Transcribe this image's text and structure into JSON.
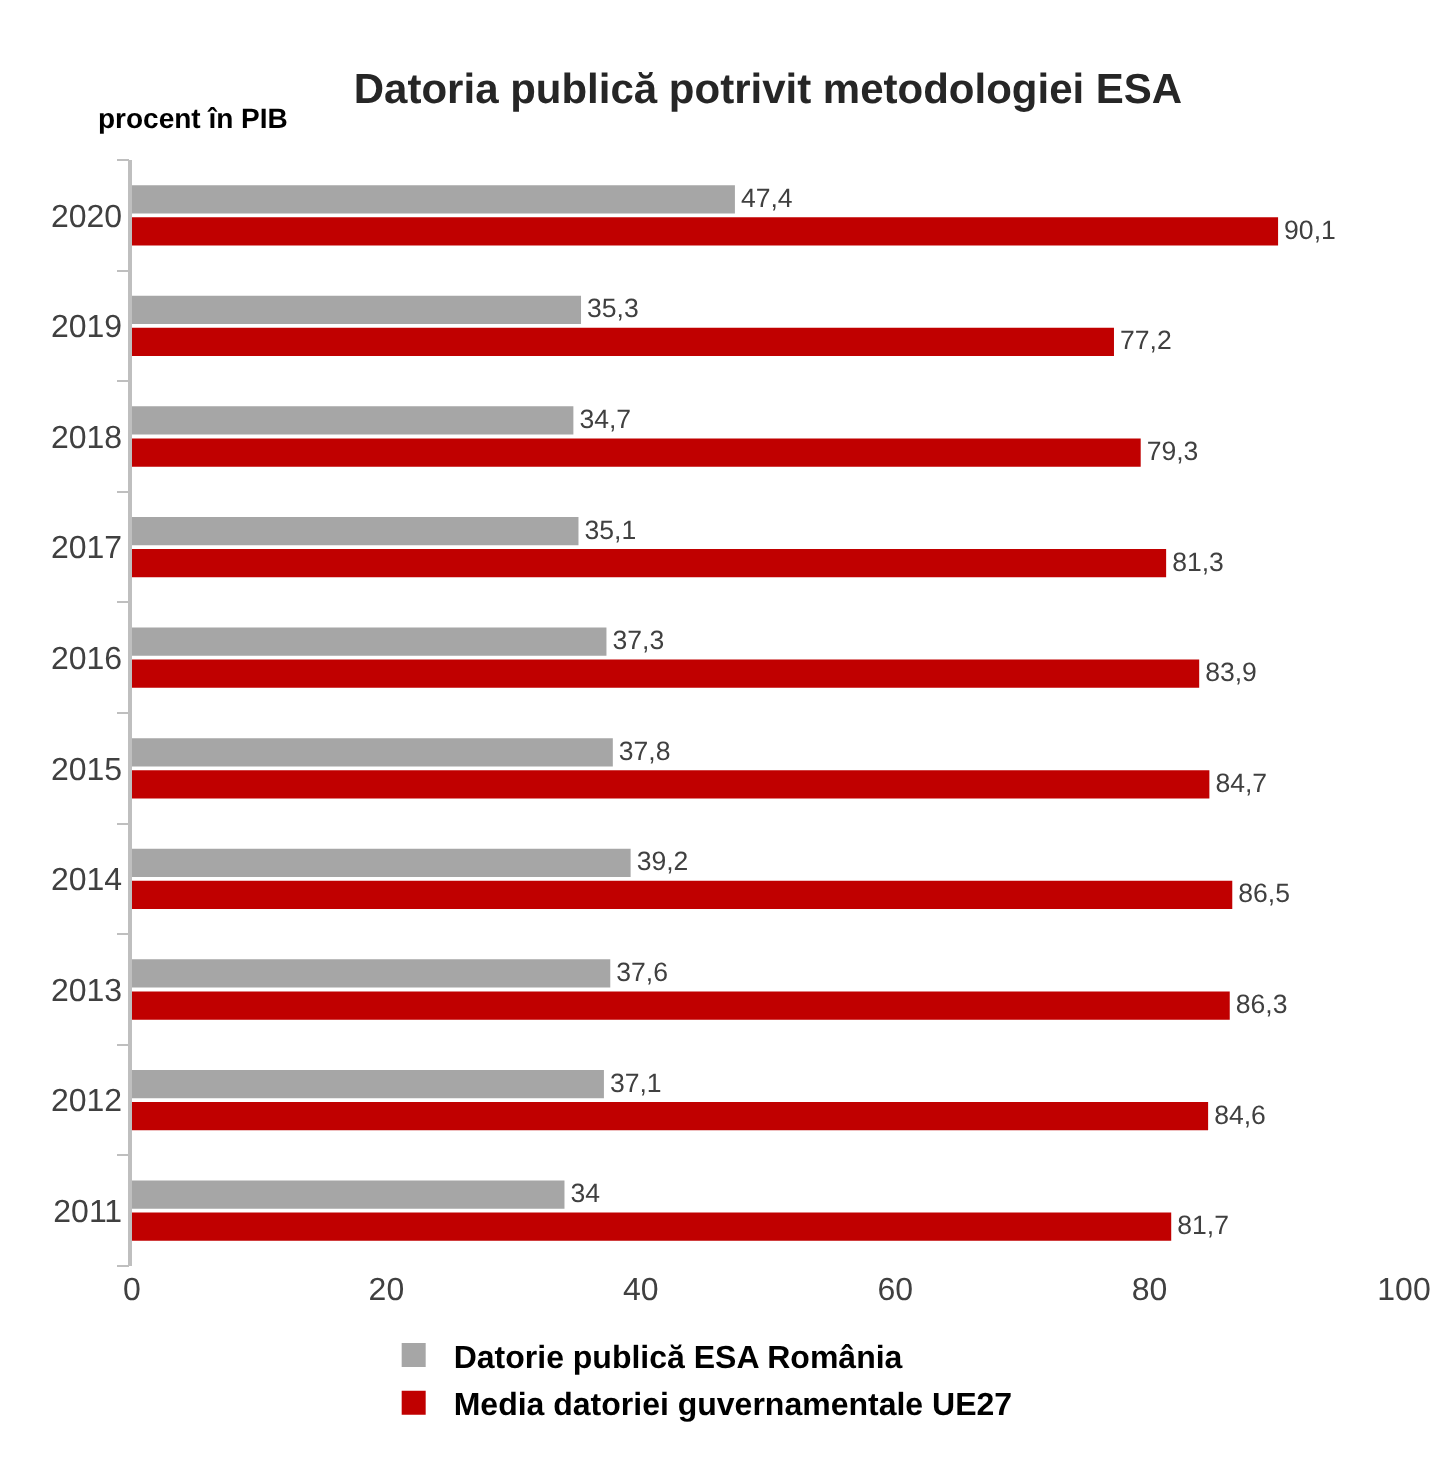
{
  "chart_data": {
    "type": "bar",
    "orientation": "horizontal",
    "title": "Datoria publică potrivit metodologiei ESA",
    "xlabel": "procent în PIB",
    "categories": [
      "2020",
      "2019",
      "2018",
      "2017",
      "2016",
      "2015",
      "2014",
      "2013",
      "2012",
      "2011"
    ],
    "series": [
      {
        "name": "Datorie publică ESA România",
        "color": "#a6a6a6",
        "values": [
          47.4,
          35.3,
          34.7,
          35.1,
          37.3,
          37.8,
          39.2,
          37.6,
          37.1,
          34
        ],
        "value_labels": [
          "47,4",
          "35,3",
          "34,7",
          "35,1",
          "37,3",
          "37,8",
          "39,2",
          "37,6",
          "37,1",
          "34"
        ]
      },
      {
        "name": "Media datoriei guvernamentale UE27",
        "color": "#c00000",
        "values": [
          90.1,
          77.2,
          79.3,
          81.3,
          83.9,
          84.7,
          86.5,
          86.3,
          84.6,
          81.7
        ],
        "value_labels": [
          "90,1",
          "77,2",
          "79,3",
          "81,3",
          "83,9",
          "84,7",
          "86,5",
          "86,3",
          "84,6",
          "81,7"
        ]
      }
    ],
    "xlim": [
      0,
      100
    ],
    "xticks": [
      0,
      20,
      40,
      60,
      80,
      100
    ],
    "legend": "bottom"
  }
}
